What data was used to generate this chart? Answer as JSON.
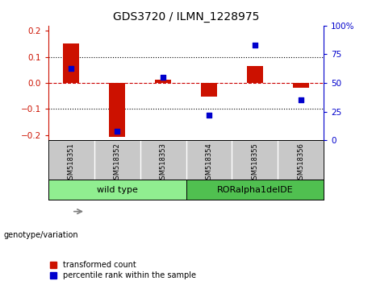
{
  "title": "GDS3720 / ILMN_1228975",
  "samples": [
    "GSM518351",
    "GSM518352",
    "GSM518353",
    "GSM518354",
    "GSM518355",
    "GSM518356"
  ],
  "red_values": [
    0.152,
    -0.207,
    0.012,
    -0.052,
    0.065,
    -0.018
  ],
  "blue_percentiles": [
    63,
    8,
    55,
    22,
    83,
    35
  ],
  "ylim_left": [
    -0.22,
    0.22
  ],
  "left_yticks": [
    -0.2,
    -0.1,
    0.0,
    0.1,
    0.2
  ],
  "right_yticks": [
    0,
    25,
    50,
    75,
    100
  ],
  "right_ytick_labels": [
    "0",
    "25",
    "50",
    "75",
    "100%"
  ],
  "bar_color": "#CC1100",
  "square_color": "#0000CC",
  "zero_line_color": "#CC0000",
  "bg_color": "#FFFFFF",
  "left_axis_color": "#CC1100",
  "right_axis_color": "#0000CC",
  "legend_red_label": "transformed count",
  "legend_blue_label": "percentile rank within the sample",
  "bar_width": 0.35,
  "square_size": 25,
  "sample_bg": "#C8C8C8",
  "wt_color": "#90EE90",
  "ror_color": "#50C050"
}
